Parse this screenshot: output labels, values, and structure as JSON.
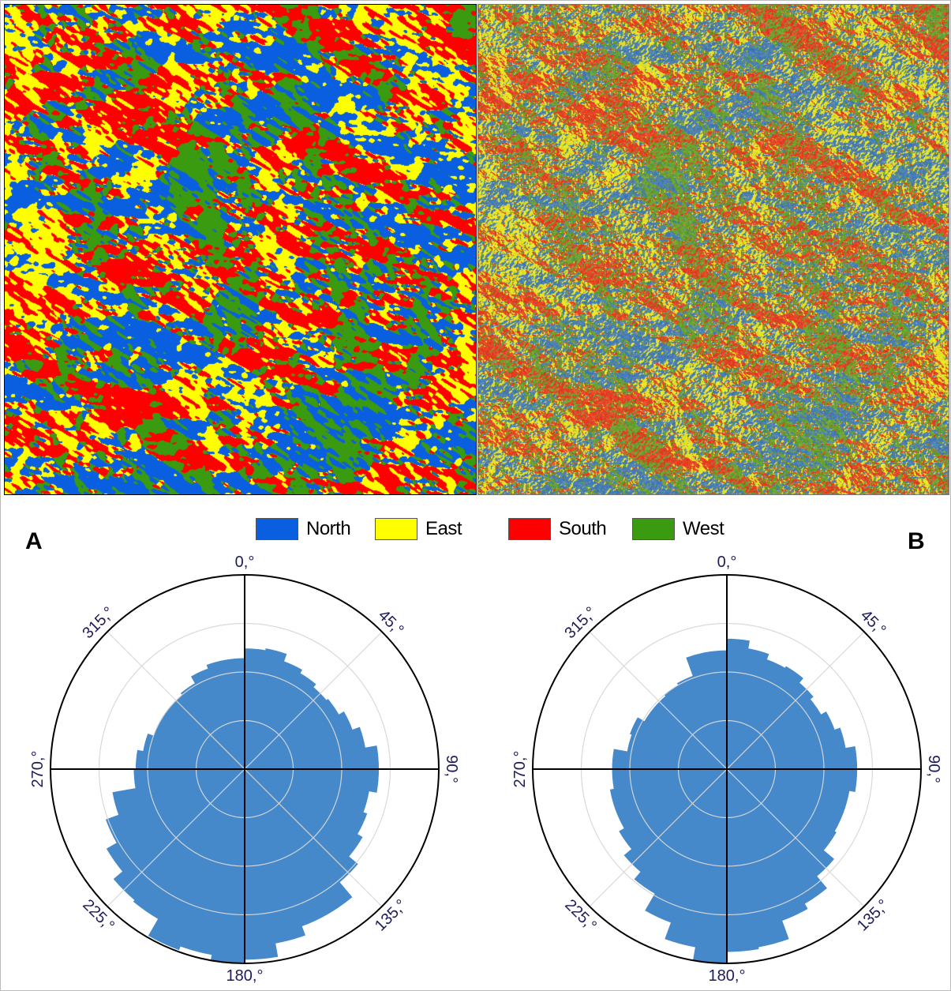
{
  "figure": {
    "panel_labels": [
      "A",
      "B"
    ],
    "legend": [
      {
        "label": "North",
        "color": "#0a5fe0"
      },
      {
        "label": "East",
        "color": "#ffff00"
      },
      {
        "label": "South",
        "color": "#ff0000"
      },
      {
        "label": "West",
        "color": "#3a9a10"
      }
    ],
    "maps": [
      {
        "panel": "A",
        "type": "aspect classification map",
        "classes": [
          "North",
          "East",
          "South",
          "West"
        ]
      },
      {
        "panel": "B",
        "type": "aspect classification overlay on terrain",
        "classes": [
          "North",
          "East",
          "South",
          "West"
        ]
      }
    ]
  },
  "chart_data": [
    {
      "type": "polar-bar",
      "panel": "A",
      "bar_color": "#4589cb",
      "angle_ticks": [
        "0,°",
        "45,°",
        "90,°",
        "135,°",
        "180,°",
        "225,°",
        "270,°",
        "315,°"
      ],
      "angles": [
        0,
        10,
        20,
        30,
        40,
        50,
        60,
        70,
        80,
        90,
        100,
        110,
        120,
        130,
        140,
        150,
        160,
        170,
        180,
        190,
        200,
        210,
        220,
        230,
        240,
        250,
        260,
        270,
        280,
        290,
        300,
        310,
        320,
        330,
        340,
        350
      ],
      "bin_width": 10,
      "values": [
        0.62,
        0.63,
        0.59,
        0.57,
        0.55,
        0.56,
        0.59,
        0.63,
        0.69,
        0.69,
        0.65,
        0.67,
        0.7,
        0.76,
        0.86,
        0.86,
        0.91,
        0.98,
        1.0,
        0.97,
        0.99,
        0.89,
        0.88,
        0.82,
        0.76,
        0.69,
        0.57,
        0.56,
        0.53,
        0.5,
        0.5,
        0.5,
        0.51,
        0.55,
        0.57,
        0.57
      ],
      "rlim": [
        0,
        1
      ],
      "radial_grid": [
        0.25,
        0.5,
        0.75
      ],
      "grid": true
    },
    {
      "type": "polar-bar",
      "panel": "B",
      "bar_color": "#4589cb",
      "angle_ticks": [
        "0,°",
        "45,°",
        "90,°",
        "135,°",
        "180,°",
        "225,°",
        "270,°",
        "315,°"
      ],
      "angles": [
        0,
        10,
        20,
        30,
        40,
        50,
        60,
        70,
        80,
        90,
        100,
        110,
        120,
        130,
        140,
        150,
        160,
        170,
        180,
        190,
        200,
        210,
        220,
        230,
        240,
        250,
        260,
        270,
        280,
        290,
        300,
        310,
        320,
        330,
        340,
        350
      ],
      "bin_width": 10,
      "values": [
        0.67,
        0.63,
        0.6,
        0.61,
        0.58,
        0.56,
        0.59,
        0.62,
        0.67,
        0.67,
        0.64,
        0.64,
        0.65,
        0.72,
        0.8,
        0.83,
        0.93,
        0.94,
        1.0,
        0.93,
        0.84,
        0.74,
        0.69,
        0.64,
        0.61,
        0.61,
        0.59,
        0.59,
        0.52,
        0.53,
        0.49,
        0.49,
        0.5,
        0.51,
        0.61,
        0.61
      ],
      "rlim": [
        0,
        1
      ],
      "radial_grid": [
        0.25,
        0.5,
        0.75
      ],
      "grid": true
    }
  ]
}
